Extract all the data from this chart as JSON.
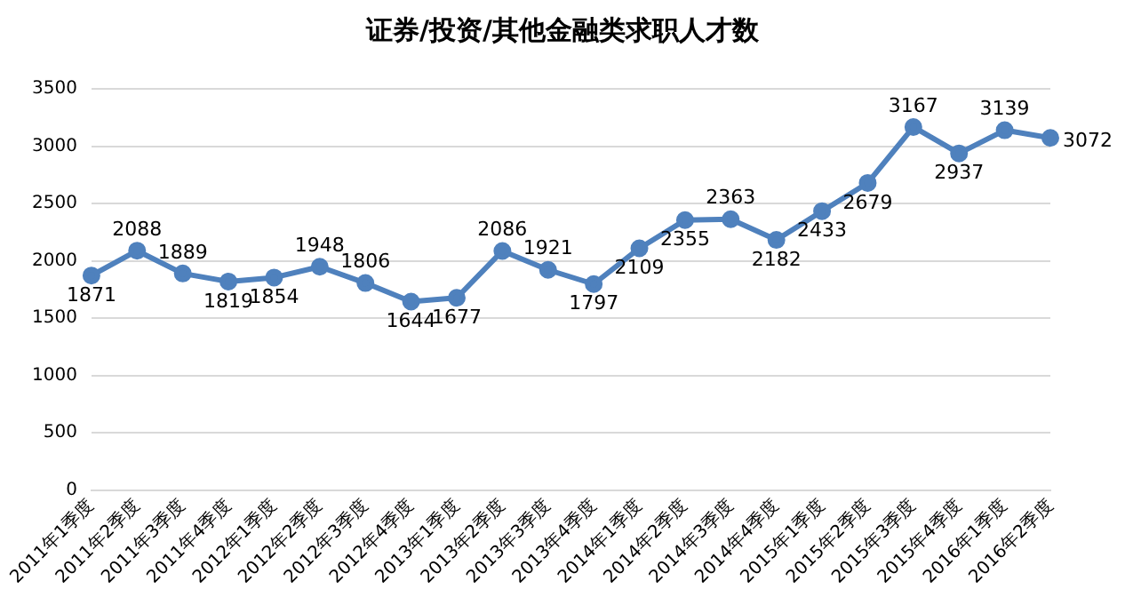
{
  "chart_data": {
    "type": "line",
    "title": "证券/投资/其他金融类求职人才数",
    "categories": [
      "2011年1季度",
      "2011年2季度",
      "2011年3季度",
      "2011年4季度",
      "2012年1季度",
      "2012年2季度",
      "2012年3季度",
      "2012年4季度",
      "2013年1季度",
      "2013年2季度",
      "2013年3季度",
      "2013年4季度",
      "2014年1季度",
      "2014年2季度",
      "2014年3季度",
      "2014年4季度",
      "2015年1季度",
      "2015年2季度",
      "2015年3季度",
      "2015年4季度",
      "2016年1季度",
      "2016年2季度"
    ],
    "series": [
      {
        "color": "#4f81bd",
        "values": [
          1871,
          2088,
          1889,
          1819,
          1854,
          1948,
          1806,
          1644,
          1677,
          2086,
          1921,
          1797,
          2109,
          2355,
          2363,
          2182,
          2433,
          2679,
          3167,
          2937,
          3139,
          3072
        ]
      }
    ],
    "ylim": [
      0,
      3500
    ],
    "yticks": [
      0,
      500,
      1000,
      1500,
      2000,
      2500,
      3000,
      3500
    ],
    "grid": "y",
    "legend": false,
    "marker": "circle",
    "line_style": "solid",
    "data_labels": true
  }
}
